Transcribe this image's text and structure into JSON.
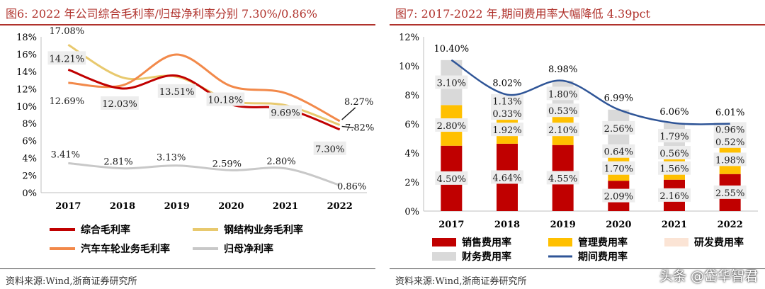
{
  "panels": {
    "left": {
      "title": "图6:  2022 年公司综合毛利率/归母净利率分别 7.30%/0.86%",
      "source": "资料来源:Wind,浙商证券研究所"
    },
    "right": {
      "title": "图7:  2017-2022 年,期间费用率大幅降低 4.39pct",
      "source": "资料来源:Wind,浙商证券研究所"
    }
  },
  "watermark": "头条 @岱华智君",
  "chart_data": [
    {
      "type": "line",
      "x": [
        "2017",
        "2018",
        "2019",
        "2020",
        "2021",
        "2022"
      ],
      "ylim": [
        0,
        18
      ],
      "yticks": [
        "0%",
        "2%",
        "4%",
        "6%",
        "8%",
        "10%",
        "12%",
        "14%",
        "16%",
        "18%"
      ],
      "legend_placement": "bottom",
      "series": [
        {
          "name": "综合毛利率",
          "values": [
            14.21,
            12.03,
            13.51,
            10.18,
            9.69,
            7.3
          ],
          "color": "#c00000",
          "labels": [
            "14.21%",
            "12.03%",
            "13.51%",
            "10.18%",
            "9.69%",
            "7.30%"
          ]
        },
        {
          "name": "钢结构业务毛利率",
          "values": [
            17.08,
            13.3,
            13.4,
            10.6,
            10.1,
            7.82
          ],
          "color": "#e8c96e",
          "labels": [
            "17.08%",
            "",
            "",
            "",
            "",
            "7.82%"
          ]
        },
        {
          "name": "汽车车轮业务毛利率",
          "values": [
            12.69,
            12.4,
            15.95,
            12.3,
            11.5,
            8.27
          ],
          "color": "#f2894a",
          "labels": [
            "12.69%",
            "",
            "",
            "",
            "",
            "8.27%"
          ]
        },
        {
          "name": "归母净利率",
          "values": [
            3.41,
            2.81,
            3.13,
            2.59,
            2.8,
            0.86
          ],
          "color": "#c8c8c8",
          "labels": [
            "3.41%",
            "2.81%",
            "3.13%",
            "2.59%",
            "2.80%",
            "0.86%"
          ]
        }
      ]
    },
    {
      "type": "bar",
      "stacked": true,
      "categories": [
        "2017",
        "2018",
        "2019",
        "2020",
        "2021",
        "2022"
      ],
      "ylim": [
        0,
        12
      ],
      "yticks": [
        "0%",
        "2%",
        "4%",
        "6%",
        "8%",
        "10%",
        "12%"
      ],
      "legend_placement": "bottom",
      "series": [
        {
          "name": "销售费用率",
          "values": [
            4.5,
            4.64,
            4.55,
            2.09,
            2.16,
            2.55
          ],
          "color": "#c00000",
          "labels": [
            "4.50%",
            "4.64%",
            "4.55%",
            "2.09%",
            "2.16%",
            "2.55%"
          ]
        },
        {
          "name": "管理费用率",
          "values": [
            2.8,
            1.92,
            2.1,
            1.7,
            1.56,
            1.98
          ],
          "color": "#ffc000",
          "labels": [
            "2.80%",
            "1.92%",
            "2.10%",
            "1.70%",
            "1.56%",
            "1.98%"
          ]
        },
        {
          "name": "研发费用率",
          "values": [
            0,
            0.33,
            0.53,
            0.64,
            0.56,
            0.52
          ],
          "color": "#fbe4d5",
          "labels": [
            "",
            "0.33%",
            "0.53%",
            "0.64%",
            "0.56%",
            "0.52%"
          ]
        },
        {
          "name": "财务费用率",
          "values": [
            3.1,
            1.13,
            1.8,
            2.56,
            1.79,
            0.96
          ],
          "color": "#d9d9d9",
          "labels": [
            "3.10%",
            "1.13%",
            "1.80%",
            "2.56%",
            "1.79%",
            "0.96%"
          ]
        }
      ],
      "line_series": {
        "name": "期间费用率",
        "values": [
          10.4,
          8.02,
          8.98,
          6.99,
          6.06,
          6.01
        ],
        "color": "#2f5597",
        "labels": [
          "10.40%",
          "8.02%",
          "8.98%",
          "6.99%",
          "6.06%",
          "6.01%"
        ]
      }
    }
  ]
}
